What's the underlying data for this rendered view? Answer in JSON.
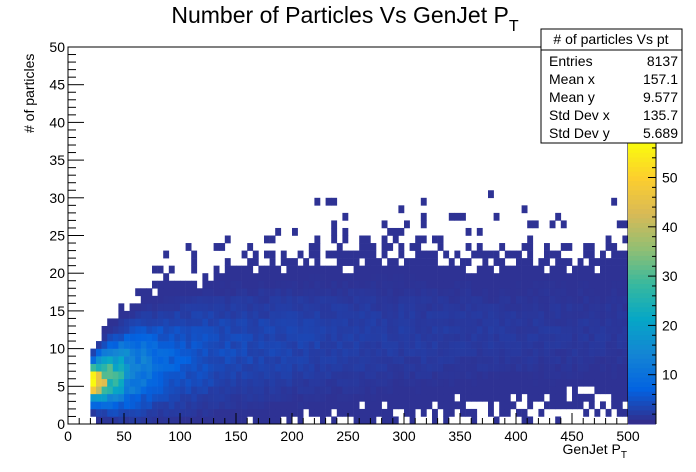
{
  "chart_data": {
    "type": "heatmap",
    "title": "Number of Particles Vs GenJet P",
    "title_subscript": "T",
    "xlabel": "GenJet P",
    "xlabel_subscript": "T",
    "ylabel": "# of particles",
    "xlim": [
      0,
      500
    ],
    "ylim": [
      0,
      50
    ],
    "x_bin_width": 5,
    "y_bin_width": 1,
    "x_ticks": [
      0,
      50,
      100,
      150,
      200,
      250,
      300,
      350,
      400,
      450,
      500
    ],
    "y_ticks": [
      0,
      5,
      10,
      15,
      20,
      25,
      30,
      35,
      40,
      45,
      50
    ],
    "z_ticks": [
      10,
      20,
      30,
      40,
      50
    ],
    "zlim": [
      0,
      57
    ],
    "colormap": [
      "#352a87",
      "#0363e1",
      "#1485d4",
      "#06a7c6",
      "#38b99e",
      "#92bf73",
      "#d9ba56",
      "#fcce2e",
      "#f9fb0e"
    ],
    "stats": {
      "title": "# of particles Vs pt",
      "rows": [
        {
          "label": "Entries",
          "value": "8137"
        },
        {
          "label": "Mean x",
          "value": "157.1"
        },
        {
          "label": "Mean y",
          "value": "9.577"
        },
        {
          "label": "Std Dev x",
          "value": "135.7"
        },
        {
          "label": "Std Dev y",
          "value": "5.689"
        }
      ]
    },
    "distribution": {
      "x_start": 20,
      "peak_x": 25,
      "peak_y": 5.5,
      "peak_count": 55
    }
  }
}
